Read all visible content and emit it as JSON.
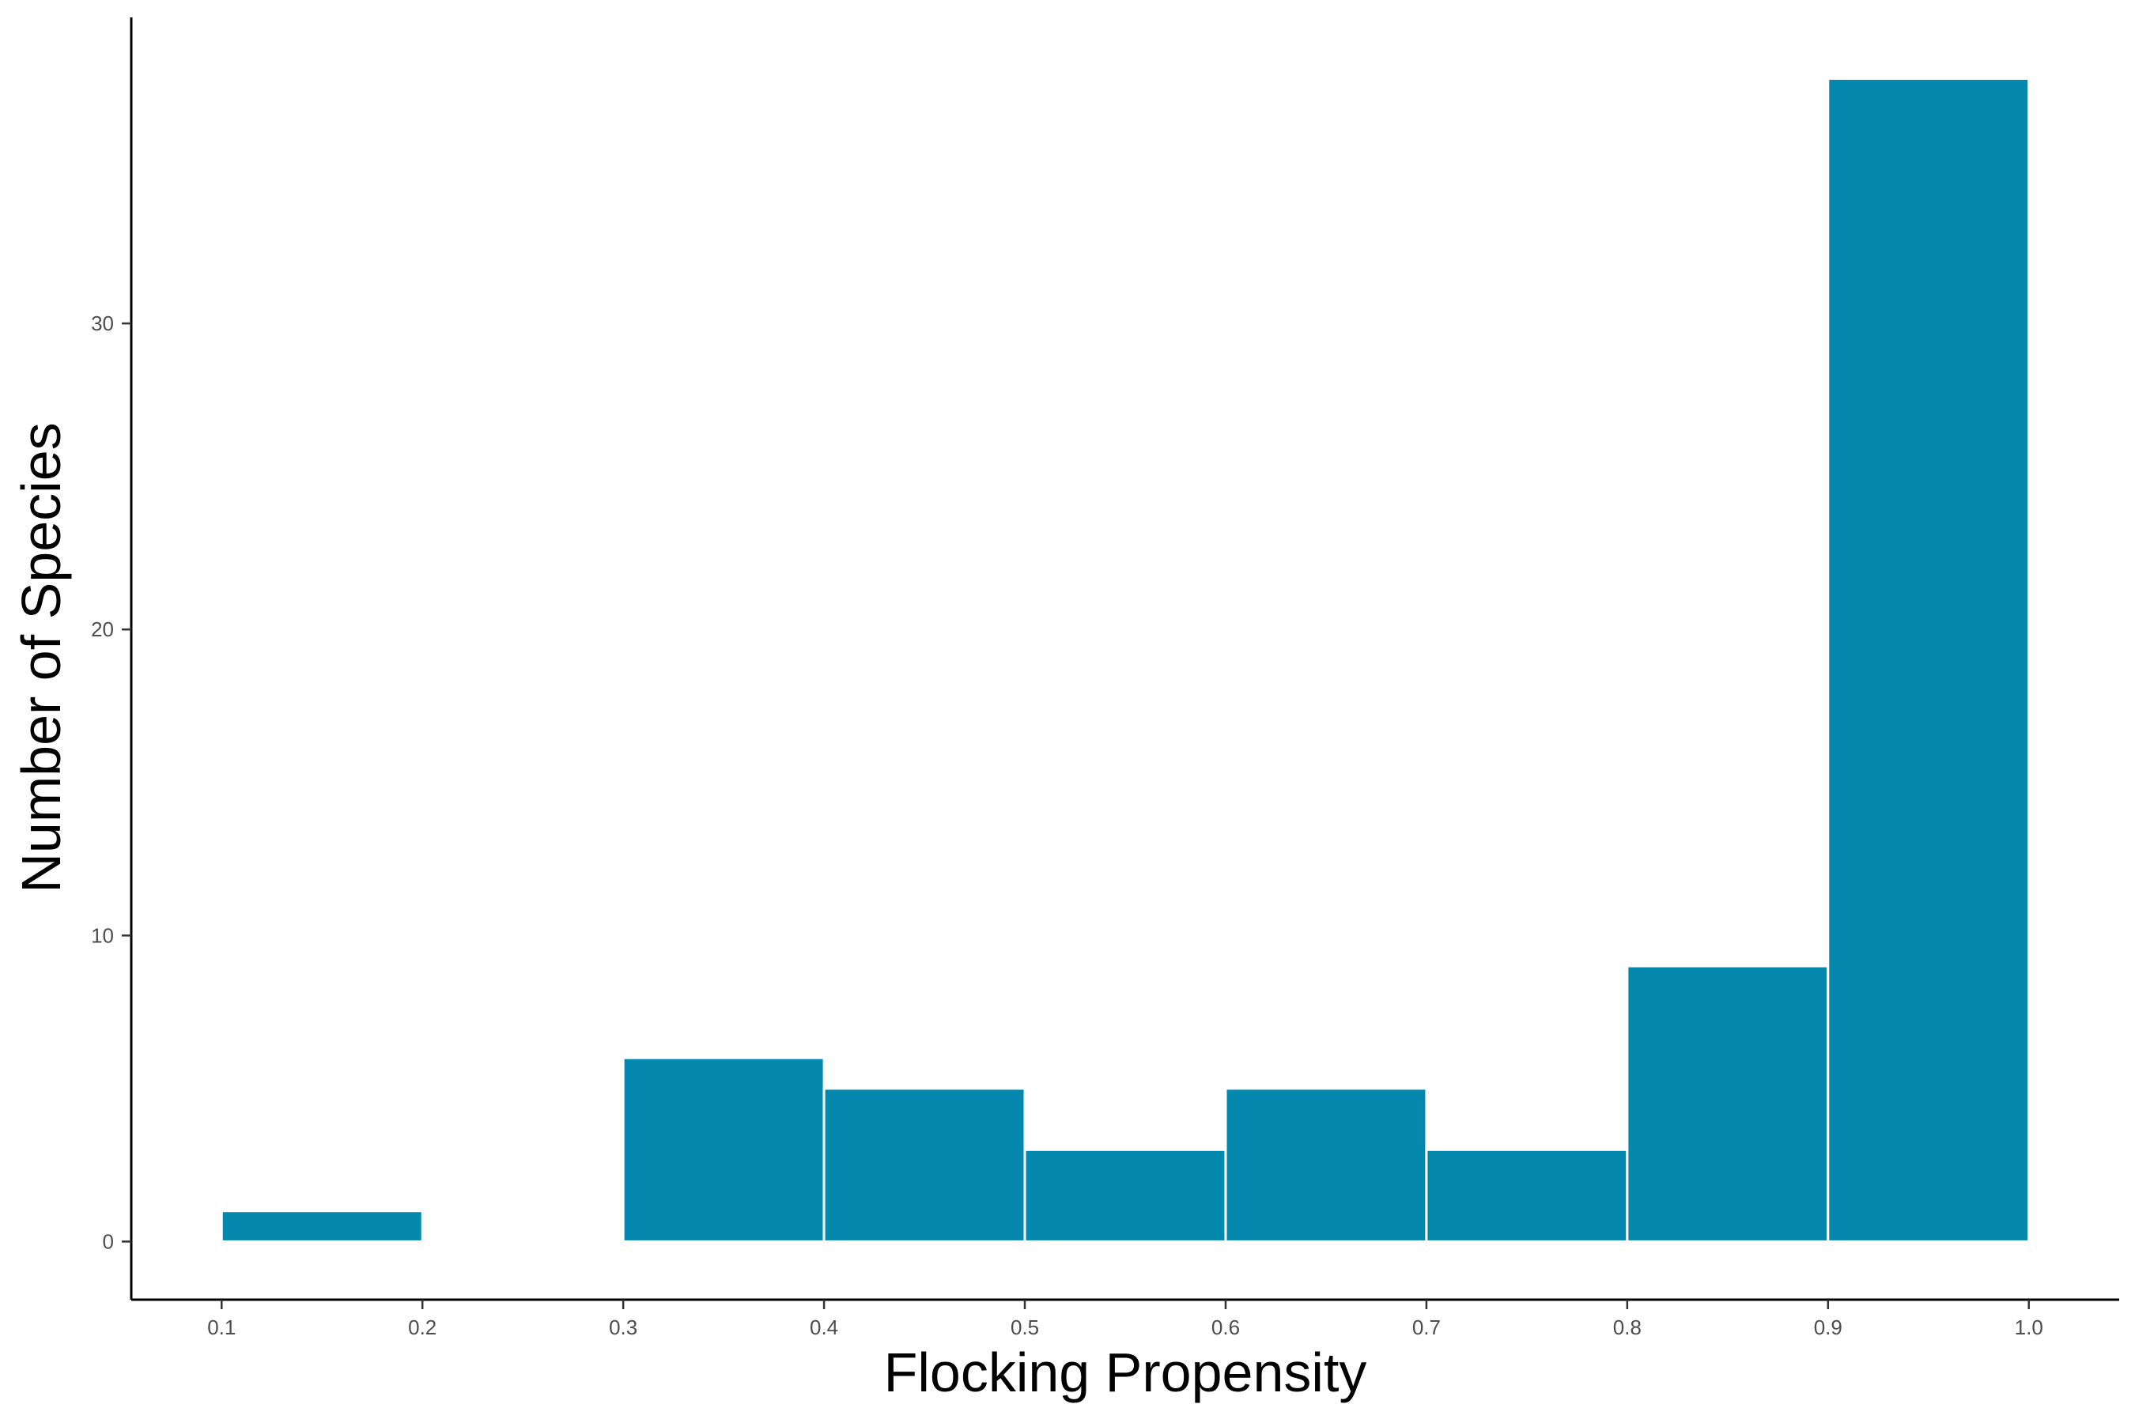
{
  "chart_data": {
    "type": "bar",
    "histogram": true,
    "xlabel": "Flocking Propensity",
    "ylabel": "Number of Species",
    "bins": [
      {
        "x0": 0.1,
        "x1": 0.2,
        "count": 1
      },
      {
        "x0": 0.2,
        "x1": 0.3,
        "count": 0
      },
      {
        "x0": 0.3,
        "x1": 0.4,
        "count": 6
      },
      {
        "x0": 0.4,
        "x1": 0.5,
        "count": 5
      },
      {
        "x0": 0.5,
        "x1": 0.6,
        "count": 3
      },
      {
        "x0": 0.6,
        "x1": 0.7,
        "count": 5
      },
      {
        "x0": 0.7,
        "x1": 0.8,
        "count": 3
      },
      {
        "x0": 0.8,
        "x1": 0.9,
        "count": 9
      },
      {
        "x0": 0.9,
        "x1": 1.0,
        "count": 38
      }
    ],
    "xticks": [
      "0.1",
      "0.2",
      "0.3",
      "0.4",
      "0.5",
      "0.6",
      "0.7",
      "0.8",
      "0.9",
      "1.0"
    ],
    "yticks": [
      "0",
      "10",
      "20",
      "30"
    ],
    "xlim": [
      0.055,
      1.045
    ],
    "ylim": [
      -1.9,
      40
    ],
    "bar_color": "#0588ae",
    "bar_edge_color": "#ffffff",
    "grid": false,
    "legend": "none"
  }
}
